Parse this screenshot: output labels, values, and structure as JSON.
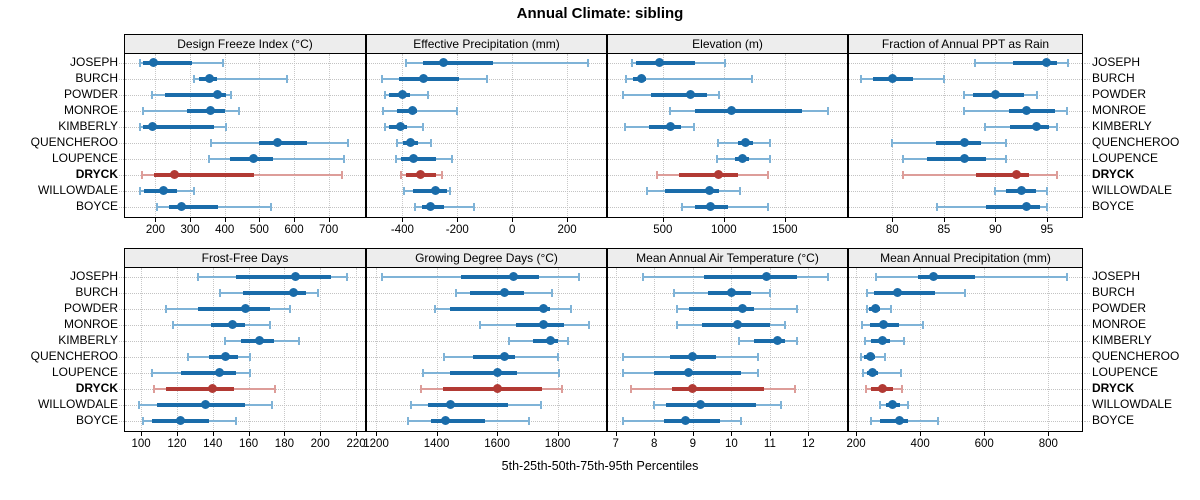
{
  "title": "Annual Climate: sibling",
  "axis_label": "5th-25th-50th-75th-95th Percentiles",
  "sites": [
    "JOSEPH",
    "BURCH",
    "POWDER",
    "MONROE",
    "KIMBERLY",
    "QUENCHEROO",
    "LOUPENCE",
    "DRYCK",
    "WILLOWDALE",
    "BOYCE"
  ],
  "highlight_site": "DRYCK",
  "colors": {
    "blue_dark": "#1a6caa",
    "blue_light": "#7fb3d7",
    "red_dark": "#b23a34",
    "red_light": "#dd9d99",
    "strip_bg": "#ededed",
    "panel_border": "#000000",
    "grid": "#c8c8c8"
  },
  "chart_data": {
    "type": "dotplot-intervals",
    "percentiles": [
      "5th",
      "25th",
      "50th",
      "75th",
      "95th"
    ],
    "legend_note": "each row shows 5th-25th-50th-75th-95th percentiles; dot = median",
    "sites": [
      "JOSEPH",
      "BURCH",
      "POWDER",
      "MONROE",
      "KIMBERLY",
      "QUENCHEROO",
      "LOUPENCE",
      "DRYCK",
      "WILLOWDALE",
      "BOYCE"
    ],
    "panels": [
      {
        "title": "Design Freeze Index (°C)",
        "row": 0,
        "col": 0,
        "xlim": [
          112,
          805
        ],
        "ticks": [
          200,
          300,
          400,
          500,
          600,
          700
        ],
        "values": [
          [
            155,
            165,
            195,
            305,
            395
          ],
          [
            310,
            325,
            355,
            378,
            580
          ],
          [
            190,
            228,
            380,
            405,
            418
          ],
          [
            165,
            290,
            360,
            400,
            440
          ],
          [
            155,
            165,
            192,
            368,
            405
          ],
          [
            360,
            500,
            553,
            638,
            755
          ],
          [
            355,
            415,
            483,
            538,
            743
          ],
          [
            160,
            195,
            255,
            485,
            738
          ],
          [
            155,
            168,
            224,
            262,
            310
          ],
          [
            205,
            240,
            276,
            380,
            535
          ]
        ]
      },
      {
        "title": "Effective Precipitation (mm)",
        "row": 0,
        "col": 1,
        "xlim": [
          -529,
          342
        ],
        "ticks": [
          -400,
          -200,
          0,
          200
        ],
        "values": [
          [
            -388,
            -325,
            -250,
            -68,
            275
          ],
          [
            -473,
            -414,
            -324,
            -195,
            -90
          ],
          [
            -465,
            -450,
            -400,
            -373,
            -305
          ],
          [
            -470,
            -420,
            -365,
            -348,
            -200
          ],
          [
            -465,
            -448,
            -408,
            -382,
            -325
          ],
          [
            -420,
            -396,
            -369,
            -343,
            -294
          ],
          [
            -424,
            -405,
            -360,
            -276,
            -221
          ],
          [
            -405,
            -386,
            -335,
            -276,
            -256
          ],
          [
            -394,
            -360,
            -280,
            -238,
            -225
          ],
          [
            -355,
            -328,
            -296,
            -248,
            -140
          ]
        ]
      },
      {
        "title": "Elevation (m)",
        "row": 0,
        "col": 2,
        "xlim": [
          50,
          2010
        ],
        "ticks": [
          500,
          1000,
          1500
        ],
        "values": [
          [
            247,
            282,
            473,
            765,
            1013
          ],
          [
            200,
            255,
            327,
            360,
            1230
          ],
          [
            175,
            400,
            730,
            860,
            960
          ],
          [
            560,
            760,
            1060,
            1645,
            1855
          ],
          [
            192,
            385,
            565,
            650,
            755
          ],
          [
            950,
            1114,
            1178,
            1239,
            1380
          ],
          [
            940,
            1093,
            1152,
            1205,
            1378
          ],
          [
            450,
            636,
            955,
            1114,
            1364
          ],
          [
            370,
            521,
            886,
            960,
            1133
          ],
          [
            660,
            761,
            894,
            1035,
            1364
          ]
        ]
      },
      {
        "title": "Fraction of Annual PPT as Rain",
        "row": 0,
        "col": 3,
        "xlim": [
          75.8,
          98.4
        ],
        "ticks": [
          80,
          85,
          90,
          95
        ],
        "values": [
          [
            88,
            91.7,
            95,
            96,
            97
          ],
          [
            77,
            78.1,
            80,
            82,
            85
          ],
          [
            87,
            87.8,
            90,
            92.8,
            94
          ],
          [
            87,
            91.3,
            93,
            95.8,
            96.9
          ],
          [
            89,
            91.4,
            94,
            95.2,
            96
          ],
          [
            80,
            84.2,
            87,
            88.6,
            91
          ],
          [
            81,
            83.4,
            87,
            89.1,
            91
          ],
          [
            81,
            88.1,
            92,
            93.3,
            96
          ],
          [
            90,
            91,
            92.5,
            93.9,
            95
          ],
          [
            84.3,
            89.1,
            93,
            94.3,
            95
          ]
        ]
      },
      {
        "title": "Frost-Free Days",
        "row": 1,
        "col": 0,
        "xlim": [
          91,
          225
        ],
        "ticks": [
          100,
          120,
          140,
          160,
          180,
          200,
          220
        ],
        "values": [
          [
            132,
            153,
            186,
            206,
            215
          ],
          [
            144,
            157,
            185,
            192,
            199
          ],
          [
            114,
            132,
            158,
            172,
            183
          ],
          [
            118,
            139,
            151,
            158,
            172
          ],
          [
            147,
            156,
            166,
            174,
            188
          ],
          [
            126,
            138,
            147,
            154,
            161
          ],
          [
            106,
            122,
            144,
            153,
            161
          ],
          [
            107,
            114,
            140,
            152,
            175
          ],
          [
            99,
            109,
            136,
            158,
            173
          ],
          [
            101,
            106,
            122,
            138,
            153
          ]
        ]
      },
      {
        "title": "Growing Degree Days (°C)",
        "row": 1,
        "col": 1,
        "xlim": [
          1170,
          1960
        ],
        "ticks": [
          1200,
          1400,
          1600,
          1800
        ],
        "values": [
          [
            1220,
            1480,
            1655,
            1740,
            1870
          ],
          [
            1465,
            1510,
            1625,
            1690,
            1780
          ],
          [
            1395,
            1445,
            1752,
            1775,
            1845
          ],
          [
            1545,
            1663,
            1755,
            1820,
            1905
          ],
          [
            1640,
            1720,
            1776,
            1800,
            1835
          ],
          [
            1425,
            1522,
            1625,
            1660,
            1800
          ],
          [
            1355,
            1445,
            1600,
            1665,
            1805
          ],
          [
            1350,
            1420,
            1600,
            1750,
            1815
          ],
          [
            1315,
            1370,
            1445,
            1635,
            1745
          ],
          [
            1305,
            1380,
            1430,
            1560,
            1705
          ]
        ]
      },
      {
        "title": "Mean Annual Air Temperature (°C)",
        "row": 1,
        "col": 2,
        "xlim": [
          6.8,
          13.0
        ],
        "ticks": [
          7,
          8,
          9,
          10,
          11,
          12
        ],
        "values": [
          [
            7.7,
            9.3,
            10.9,
            11.7,
            12.5
          ],
          [
            8.5,
            9.4,
            10.0,
            10.5,
            11.0
          ],
          [
            8.6,
            8.9,
            10.3,
            10.6,
            11.7
          ],
          [
            8.6,
            9.25,
            10.15,
            11.0,
            11.4
          ],
          [
            10.2,
            10.6,
            11.2,
            11.4,
            11.7
          ],
          [
            7.2,
            8.4,
            9.0,
            9.6,
            10.7
          ],
          [
            7.2,
            8.0,
            8.9,
            10.25,
            10.7
          ],
          [
            7.4,
            8.45,
            9.0,
            10.85,
            11.65
          ],
          [
            8.0,
            8.3,
            9.2,
            10.65,
            11.3
          ],
          [
            7.2,
            8.25,
            8.8,
            9.7,
            10.25
          ]
        ]
      },
      {
        "title": "Mean Annual Precipitation (mm)",
        "row": 1,
        "col": 3,
        "xlim": [
          178,
          905
        ],
        "ticks": [
          200,
          400,
          600,
          800
        ],
        "values": [
          [
            262,
            392,
            442,
            572,
            858
          ],
          [
            235,
            255,
            330,
            447,
            540
          ],
          [
            235,
            240,
            260,
            275,
            310
          ],
          [
            220,
            245,
            286,
            333,
            410
          ],
          [
            228,
            247,
            282,
            305,
            350
          ],
          [
            216,
            225,
            244,
            259,
            291
          ],
          [
            221,
            234,
            251,
            267,
            340
          ],
          [
            231,
            247,
            282,
            316,
            344
          ],
          [
            276,
            293,
            315,
            337,
            363
          ],
          [
            247,
            276,
            337,
            363,
            455
          ]
        ]
      }
    ]
  }
}
